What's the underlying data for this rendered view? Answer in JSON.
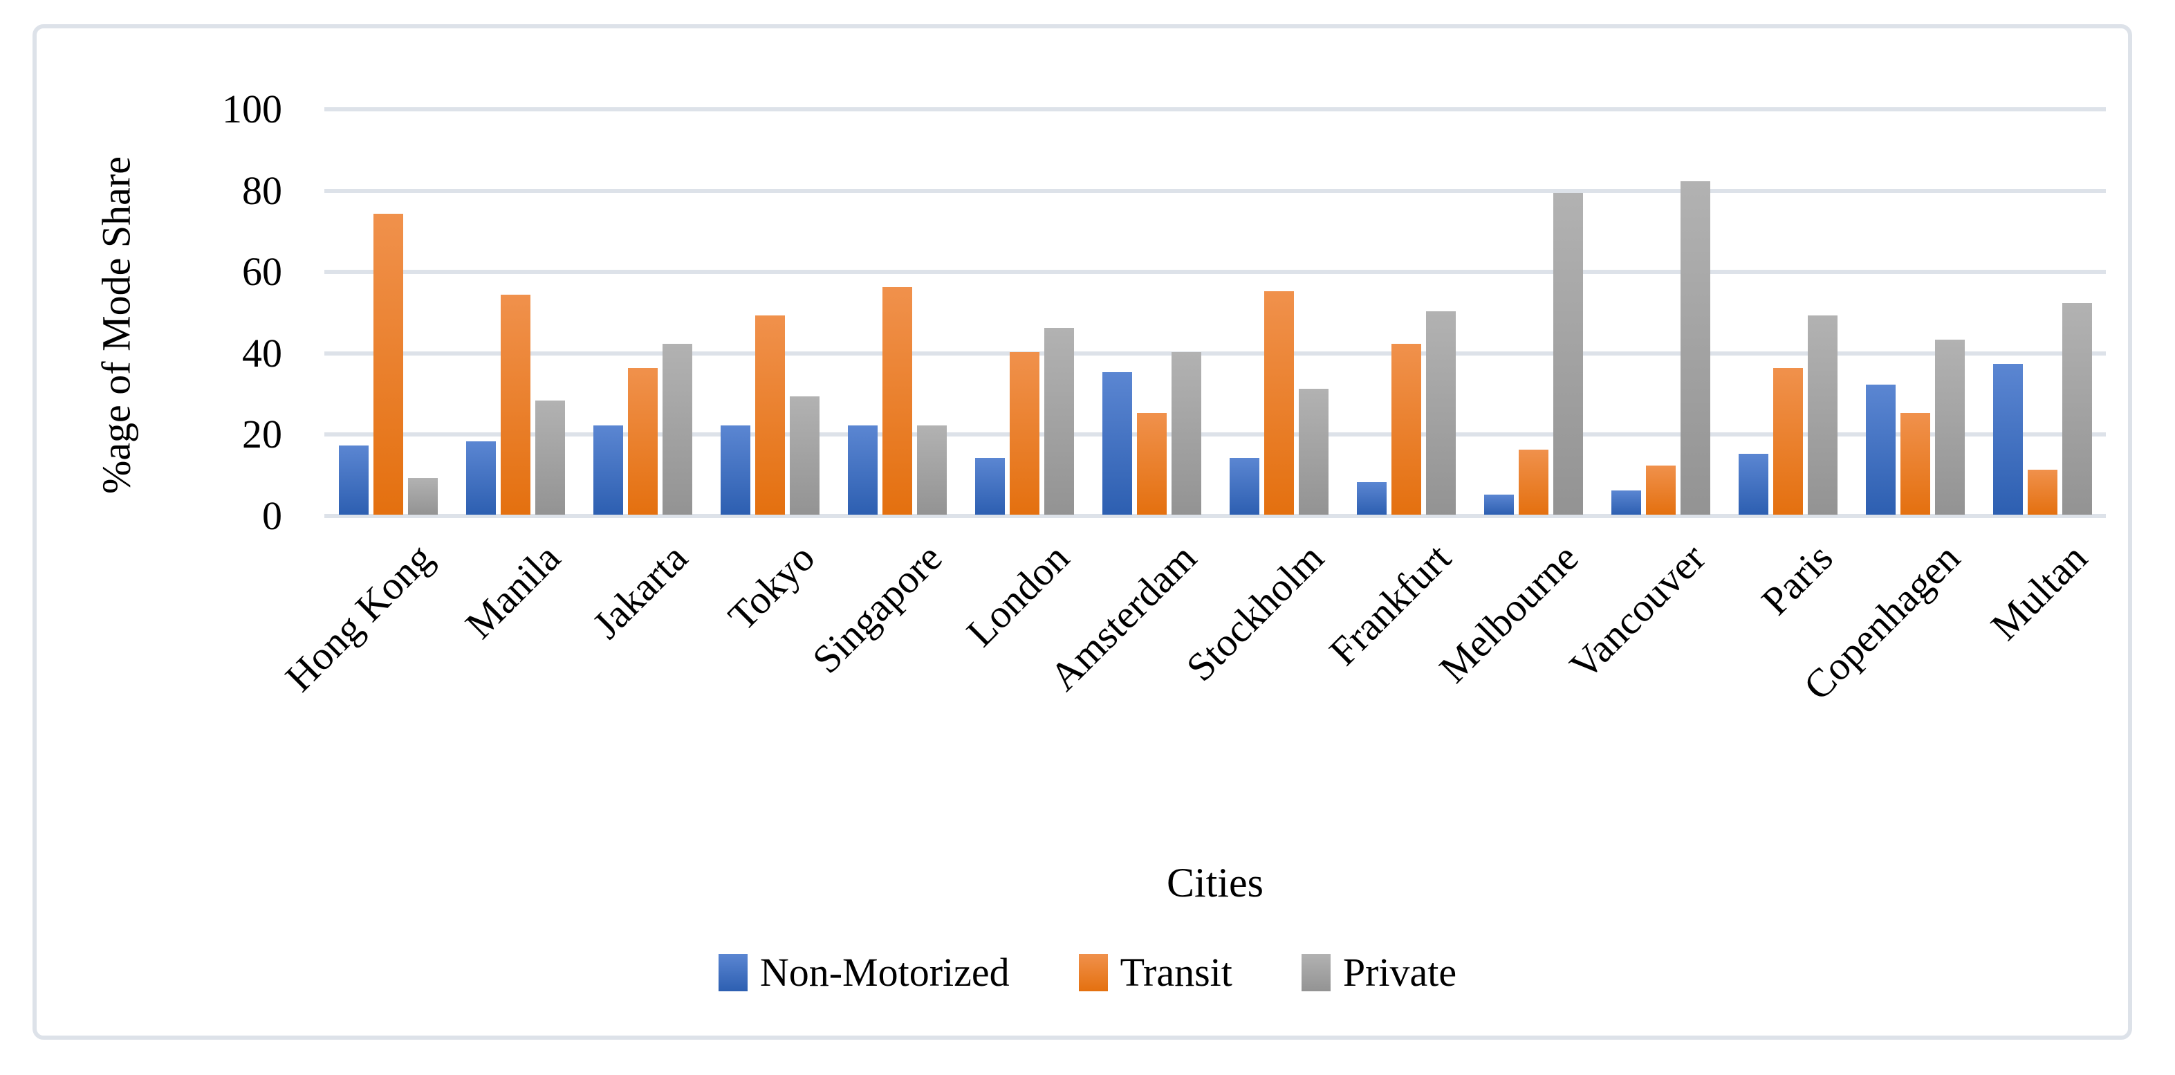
{
  "chart_data": {
    "type": "bar",
    "title": "",
    "xlabel": "Cities",
    "ylabel": "%age of Mode Share",
    "ylim": [
      0,
      100
    ],
    "yticks": [
      0,
      20,
      40,
      60,
      80,
      100
    ],
    "grid": true,
    "legend_position": "bottom",
    "categories": [
      "Hong Kong",
      "Manila",
      "Jakarta",
      "Tokyo",
      "Singapore",
      "London",
      "Amsterdam",
      "Stockholm",
      "Frankfurt",
      "Melbourne",
      "Vancouver",
      "Paris",
      "Copenhagen",
      "Multan"
    ],
    "series": [
      {
        "name": "Non-Motorized",
        "color_top": "#5b86d2",
        "color_bottom": "#2d5fb1",
        "values": [
          17,
          18,
          22,
          22,
          22,
          14,
          35,
          14,
          8,
          5,
          6,
          15,
          32,
          37
        ]
      },
      {
        "name": "Transit",
        "color_top": "#f0914c",
        "color_bottom": "#e4700f",
        "values": [
          74,
          54,
          36,
          49,
          56,
          40,
          25,
          55,
          42,
          16,
          12,
          36,
          25,
          11
        ]
      },
      {
        "name": "Private",
        "color_top": "#b2b2b2",
        "color_bottom": "#939393",
        "values": [
          9,
          28,
          42,
          29,
          22,
          46,
          40,
          31,
          50,
          79,
          82,
          49,
          43,
          52
        ]
      }
    ]
  },
  "styles": {
    "gridline_color": "#dde2e9",
    "frame_border_color": "#dde2e9",
    "text_color": "#000000",
    "background_color": "#ffffff"
  }
}
